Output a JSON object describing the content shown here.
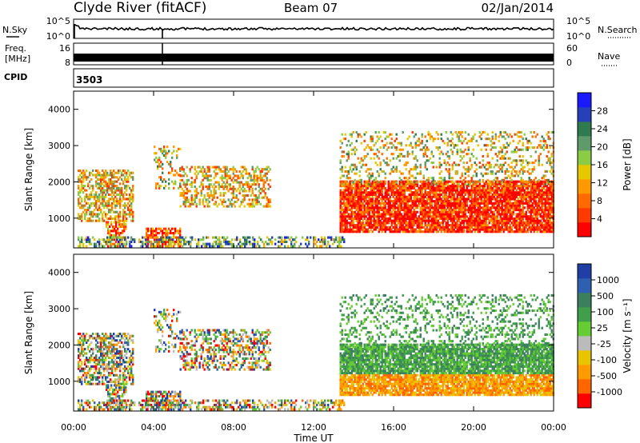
{
  "header": {
    "station": "Clyde River (fitACF)",
    "beam": "Beam 07",
    "date": "02/Jan/2014"
  },
  "top_panels": {
    "nsky_label": "N.Sky",
    "nsearch_label": "N.Search",
    "nsky_ticks": [
      "10^5",
      "10^0"
    ],
    "nsearch_ticks": [
      "10^5",
      "10^0"
    ],
    "freq_label": "Freq.",
    "freq_unit": "[MHz]",
    "freq_ticks": [
      "16",
      "8"
    ],
    "nave_label": "Nave",
    "nave_ticks": [
      "60",
      "0"
    ],
    "cpid_label": "CPID",
    "cpid_value": "3503"
  },
  "colors": {
    "power_scale": [
      "#1a1aff",
      "#2540b8",
      "#2f7a4e",
      "#5f9a6a",
      "#8ccc44",
      "#e6c800",
      "#ff9900",
      "#ff6a00",
      "#ff3a00",
      "#ff0000"
    ],
    "velocity_scale": [
      "#1f3fa6",
      "#2f5fb0",
      "#3c7f5e",
      "#3f9f4a",
      "#66cc33",
      "#bbbbbb",
      "#e9c400",
      "#ff9a00",
      "#ff6600",
      "#ff0000"
    ]
  },
  "chart_data": [
    {
      "type": "heatmap",
      "name": "power",
      "ylabel": "Slant Range [km]",
      "yticks": [
        "4000",
        "3000",
        "2000",
        "1000"
      ],
      "ylim": [
        180,
        4500
      ],
      "xlim": [
        0,
        24
      ],
      "colorbar_label": "Power [dB]",
      "colorbar_ticks": [
        "28",
        "24",
        "20",
        "16",
        "12",
        "8",
        "4"
      ],
      "clim": [
        0,
        32
      ]
    },
    {
      "type": "heatmap",
      "name": "velocity",
      "xlabel": "Time UT",
      "ylabel": "Slant Range [km]",
      "yticks": [
        "4000",
        "3000",
        "2000",
        "1000"
      ],
      "ylim": [
        180,
        4500
      ],
      "xlim": [
        0,
        24
      ],
      "xticks": [
        "00:00",
        "04:00",
        "08:00",
        "12:00",
        "16:00",
        "20:00",
        "00:00"
      ],
      "colorbar_label": "Velocity [m s⁻¹]",
      "colorbar_ticks": [
        "1000",
        "500",
        "100",
        "25",
        "-25",
        "-100",
        "-500",
        "-1000"
      ]
    }
  ]
}
